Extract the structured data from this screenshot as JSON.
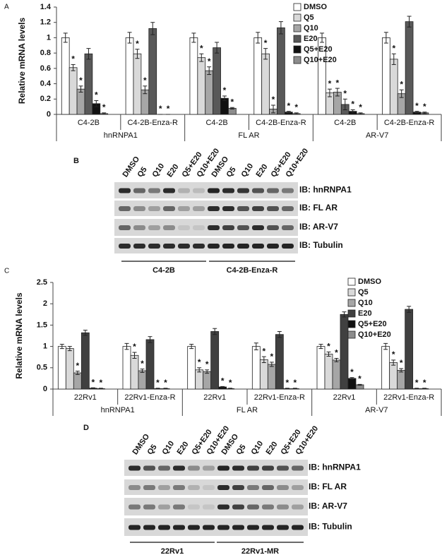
{
  "chart_data": [
    {
      "type": "bar",
      "panel": "A",
      "ylabel": "Relative mRNA levels",
      "categories": [
        "C4-2B",
        "C4-2B-Enza-R",
        "C4-2B",
        "C4-2B-Enza-R",
        "C4-2B",
        "C4-2B-Enza-R"
      ],
      "category_groups": [
        "hnRNPA1",
        "FL AR",
        "AR-V7"
      ],
      "ylim": [
        0,
        1.4
      ],
      "yticks": [
        0,
        0.2,
        0.4,
        0.6,
        0.8,
        1,
        1.2,
        1.4
      ],
      "series": [
        {
          "name": "DMSO",
          "color": "#ffffff",
          "values": [
            1,
            1,
            1,
            1,
            1,
            1
          ],
          "errors": [
            0.06,
            0.07,
            0.06,
            0.07,
            0.06,
            0.07
          ],
          "annotations": [
            null,
            null,
            null,
            null,
            null,
            null
          ]
        },
        {
          "name": "Q5",
          "color": "#d9d9d9",
          "values": [
            0.61,
            0.79,
            0.74,
            0.79,
            0.28,
            0.72
          ],
          "errors": [
            0.04,
            0.06,
            0.05,
            0.07,
            0.05,
            0.07
          ],
          "annotations": [
            "*",
            "*",
            "*",
            "*",
            "*",
            "*"
          ]
        },
        {
          "name": "Q10",
          "color": "#a6a6a6",
          "values": [
            0.33,
            0.32,
            0.57,
            0.07,
            0.29,
            0.27
          ],
          "errors": [
            0.04,
            0.05,
            0.05,
            0.05,
            0.05,
            0.05
          ],
          "annotations": [
            "*",
            "*",
            "*",
            "*",
            "*",
            "*"
          ]
        },
        {
          "name": "E20",
          "color": "#595959",
          "values": [
            0.79,
            1.12,
            0.87,
            1.13,
            0.13,
            1.21
          ],
          "errors": [
            0.07,
            0.08,
            0.07,
            0.08,
            0.07,
            0.07
          ],
          "annotations": [
            null,
            null,
            null,
            null,
            "*",
            null
          ]
        },
        {
          "name": "Q5+E20",
          "color": "#111111",
          "values": [
            0.14,
            0,
            0.21,
            0.03,
            0.04,
            0.03
          ],
          "errors": [
            0.04,
            0,
            0.03,
            0.01,
            0.02,
            0.01
          ],
          "annotations": [
            "*",
            "*",
            "*",
            "*",
            "*",
            "*"
          ]
        },
        {
          "name": "Q10+E20",
          "color": "#8c8c8c",
          "values": [
            0.01,
            0,
            0.08,
            0.01,
            0.01,
            0.02
          ],
          "errors": [
            0.01,
            0,
            0.01,
            0.01,
            0.01,
            0.01
          ],
          "annotations": [
            "*",
            "*",
            "*",
            "*",
            "*",
            "*"
          ]
        }
      ]
    },
    {
      "type": "bar",
      "panel": "C",
      "ylabel": "Relative mRNA levels",
      "categories": [
        "22Rv1",
        "22Rv1-Enza-R",
        "22Rv1",
        "22Rv1-Enza-R",
        "22Rv1",
        "22Rv1-Enza-R"
      ],
      "category_groups": [
        "hnRNPA1",
        "FL AR",
        "AR-V7"
      ],
      "ylim": [
        0,
        2.5
      ],
      "yticks": [
        0,
        0.5,
        1,
        1.5,
        2,
        2.5
      ],
      "series": [
        {
          "name": "DMSO",
          "color": "#ffffff",
          "values": [
            1,
            1,
            1,
            1,
            1,
            1
          ],
          "errors": [
            0.05,
            0.07,
            0.05,
            0.08,
            0.05,
            0.07
          ],
          "annotations": [
            null,
            null,
            null,
            null,
            null,
            null
          ]
        },
        {
          "name": "Q5",
          "color": "#d9d9d9",
          "values": [
            0.95,
            0.79,
            0.45,
            0.69,
            0.82,
            0.62
          ],
          "errors": [
            0.05,
            0.07,
            0.05,
            0.07,
            0.05,
            0.06
          ],
          "annotations": [
            null,
            "*",
            "*",
            "*",
            "*",
            "*"
          ]
        },
        {
          "name": "Q10",
          "color": "#a6a6a6",
          "values": [
            0.38,
            0.43,
            0.41,
            0.58,
            0.68,
            0.44
          ],
          "errors": [
            0.04,
            0.04,
            0.04,
            0.05,
            0.04,
            0.04
          ],
          "annotations": [
            "*",
            "*",
            "*",
            "*",
            "*",
            "*"
          ]
        },
        {
          "name": "E20",
          "color": "#404040",
          "values": [
            1.32,
            1.16,
            1.35,
            1.28,
            1.75,
            1.87
          ],
          "errors": [
            0.06,
            0.07,
            0.07,
            0.07,
            0.06,
            0.07
          ],
          "annotations": [
            null,
            null,
            null,
            null,
            null,
            null
          ]
        },
        {
          "name": "Q5+E20",
          "color": "#111111",
          "values": [
            0.02,
            0.01,
            0.05,
            0.01,
            0.25,
            0.01
          ],
          "errors": [
            0.01,
            0.01,
            0.01,
            0.01,
            0.02,
            0.01
          ],
          "annotations": [
            "*",
            "*",
            "*",
            "*",
            "*",
            "*"
          ]
        },
        {
          "name": "Q10+E20",
          "color": "#8c8c8c",
          "values": [
            0.01,
            0.01,
            0.01,
            0.01,
            0.1,
            0.01
          ],
          "errors": [
            0.01,
            0.01,
            0.01,
            0.01,
            0.01,
            0.01
          ],
          "annotations": [
            "*",
            "*",
            "*",
            "*",
            "*",
            "*"
          ]
        }
      ]
    }
  ],
  "blots": [
    {
      "panel": "B",
      "lanes": [
        "DMSO",
        "Q5",
        "Q10",
        "E20",
        "Q5+E20",
        "Q10+E20",
        "DMSO",
        "Q5",
        "Q10",
        "E20",
        "Q5+E20",
        "Q10+E20"
      ],
      "rows": [
        "IB: hnRNPA1",
        "IB: FL AR",
        "IB: AR-V7",
        "IB: Tubulin"
      ],
      "groups": [
        "C4-2B",
        "C4-2B-Enza-R"
      ]
    },
    {
      "panel": "D",
      "lanes": [
        "DMSO",
        "Q5",
        "Q10",
        "E20",
        "Q5+E20",
        "Q10+E20",
        "DMSO",
        "Q5",
        "Q10",
        "E20",
        "Q5+E20",
        "Q10+E20"
      ],
      "rows": [
        "IB: hnRNPA1",
        "IB: FL AR",
        "IB: AR-V7",
        "IB: Tubulin"
      ],
      "groups": [
        "22Rv1",
        "22Rv1-MR"
      ]
    }
  ]
}
